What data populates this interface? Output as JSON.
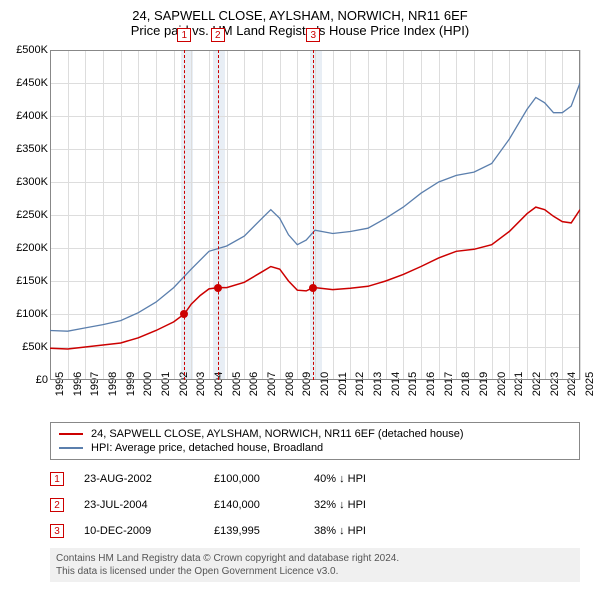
{
  "title": "24, SAPWELL CLOSE, AYLSHAM, NORWICH, NR11 6EF",
  "subtitle": "Price paid vs. HM Land Registry's House Price Index (HPI)",
  "chart": {
    "type": "line",
    "xlim": [
      1995,
      2025
    ],
    "ylim": [
      0,
      500000
    ],
    "ytick_step": 50000,
    "yticks": [
      "£0",
      "£50K",
      "£100K",
      "£150K",
      "£200K",
      "£250K",
      "£300K",
      "£350K",
      "£400K",
      "£450K",
      "£500K"
    ],
    "xticks": [
      "1995",
      "1996",
      "1997",
      "1998",
      "1999",
      "2000",
      "2001",
      "2002",
      "2003",
      "2004",
      "2005",
      "2006",
      "2007",
      "2008",
      "2009",
      "2010",
      "2011",
      "2012",
      "2013",
      "2014",
      "2015",
      "2016",
      "2017",
      "2018",
      "2019",
      "2020",
      "2021",
      "2022",
      "2023",
      "2024",
      "2025"
    ],
    "grid_color": "#dddddd",
    "background_color": "#ffffff",
    "series": [
      {
        "name": "property",
        "label": "24, SAPWELL CLOSE, AYLSHAM, NORWICH, NR11 6EF (detached house)",
        "color": "#cc0000",
        "line_width": 1.5,
        "data": [
          [
            1995,
            48000
          ],
          [
            1996,
            47000
          ],
          [
            1997,
            50000
          ],
          [
            1998,
            53000
          ],
          [
            1999,
            56000
          ],
          [
            2000,
            64000
          ],
          [
            2001,
            75000
          ],
          [
            2002,
            88000
          ],
          [
            2002.6,
            100000
          ],
          [
            2003,
            115000
          ],
          [
            2003.5,
            128000
          ],
          [
            2004,
            138000
          ],
          [
            2004.5,
            140000
          ],
          [
            2005,
            140000
          ],
          [
            2006,
            148000
          ],
          [
            2007,
            164000
          ],
          [
            2007.5,
            172000
          ],
          [
            2008,
            168000
          ],
          [
            2008.5,
            150000
          ],
          [
            2009,
            136000
          ],
          [
            2009.5,
            135000
          ],
          [
            2009.9,
            139995
          ],
          [
            2010,
            140000
          ],
          [
            2011,
            137000
          ],
          [
            2012,
            139000
          ],
          [
            2013,
            142000
          ],
          [
            2014,
            150000
          ],
          [
            2015,
            160000
          ],
          [
            2016,
            172000
          ],
          [
            2017,
            185000
          ],
          [
            2018,
            195000
          ],
          [
            2019,
            198000
          ],
          [
            2020,
            205000
          ],
          [
            2021,
            225000
          ],
          [
            2022,
            252000
          ],
          [
            2022.5,
            262000
          ],
          [
            2023,
            258000
          ],
          [
            2023.5,
            248000
          ],
          [
            2024,
            240000
          ],
          [
            2024.5,
            238000
          ],
          [
            2025,
            258000
          ]
        ]
      },
      {
        "name": "hpi",
        "label": "HPI: Average price, detached house, Broadland",
        "color": "#5b7fad",
        "line_width": 1.3,
        "data": [
          [
            1995,
            75000
          ],
          [
            1996,
            74000
          ],
          [
            1997,
            79000
          ],
          [
            1998,
            84000
          ],
          [
            1999,
            90000
          ],
          [
            2000,
            102000
          ],
          [
            2001,
            118000
          ],
          [
            2002,
            140000
          ],
          [
            2003,
            168000
          ],
          [
            2004,
            195000
          ],
          [
            2005,
            203000
          ],
          [
            2006,
            218000
          ],
          [
            2007,
            245000
          ],
          [
            2007.5,
            258000
          ],
          [
            2008,
            245000
          ],
          [
            2008.5,
            220000
          ],
          [
            2009,
            205000
          ],
          [
            2009.5,
            212000
          ],
          [
            2010,
            227000
          ],
          [
            2011,
            222000
          ],
          [
            2012,
            225000
          ],
          [
            2013,
            230000
          ],
          [
            2014,
            245000
          ],
          [
            2015,
            262000
          ],
          [
            2016,
            283000
          ],
          [
            2017,
            300000
          ],
          [
            2018,
            310000
          ],
          [
            2019,
            315000
          ],
          [
            2020,
            328000
          ],
          [
            2021,
            365000
          ],
          [
            2022,
            410000
          ],
          [
            2022.5,
            428000
          ],
          [
            2023,
            420000
          ],
          [
            2023.5,
            405000
          ],
          [
            2024,
            405000
          ],
          [
            2024.5,
            415000
          ],
          [
            2025,
            450000
          ]
        ]
      }
    ],
    "highlights": [
      {
        "start": 2002.4,
        "end": 2003.1
      },
      {
        "start": 2004.2,
        "end": 2004.9
      },
      {
        "start": 2009.7,
        "end": 2010.4
      }
    ],
    "markers": [
      {
        "num": "1",
        "x": 2002.6,
        "y": 100000
      },
      {
        "num": "2",
        "x": 2004.5,
        "y": 140000
      },
      {
        "num": "3",
        "x": 2009.9,
        "y": 139995
      }
    ]
  },
  "legend": [
    {
      "color": "#cc0000",
      "label": "24, SAPWELL CLOSE, AYLSHAM, NORWICH, NR11 6EF (detached house)"
    },
    {
      "color": "#5b7fad",
      "label": "HPI: Average price, detached house, Broadland"
    }
  ],
  "transactions": [
    {
      "num": "1",
      "date": "23-AUG-2002",
      "price": "£100,000",
      "pct": "40% ↓ HPI"
    },
    {
      "num": "2",
      "date": "23-JUL-2004",
      "price": "£140,000",
      "pct": "32% ↓ HPI"
    },
    {
      "num": "3",
      "date": "10-DEC-2009",
      "price": "£139,995",
      "pct": "38% ↓ HPI"
    }
  ],
  "footnote_l1": "Contains HM Land Registry data © Crown copyright and database right 2024.",
  "footnote_l2": "This data is licensed under the Open Government Licence v3.0."
}
